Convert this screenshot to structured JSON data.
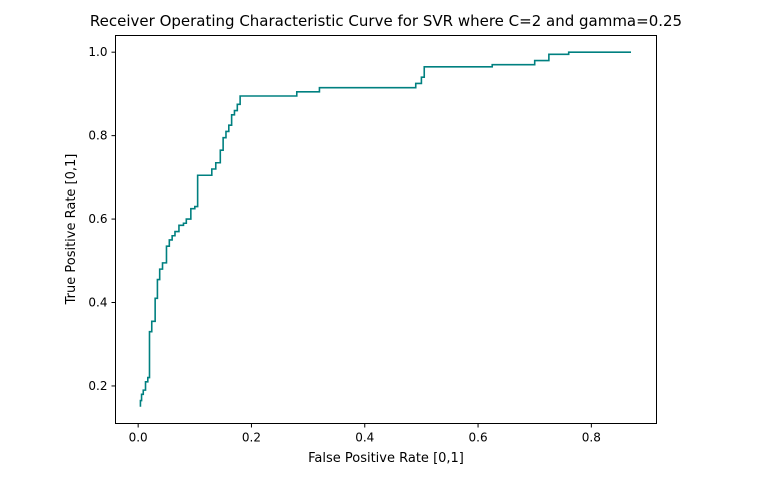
{
  "chart_data": {
    "type": "line",
    "title": "Receiver Operating Characteristic Curve for SVR where C=2 and gamma=0.25",
    "xlabel": "False Positive Rate [0,1]",
    "ylabel": "True Positive Rate [0,1]",
    "xlim": [
      -0.04,
      0.915
    ],
    "ylim": [
      0.11,
      1.04
    ],
    "xticks": [
      0.0,
      0.2,
      0.4,
      0.6,
      0.8
    ],
    "xtick_labels": [
      "0.0",
      "0.2",
      "0.4",
      "0.6",
      "0.8"
    ],
    "yticks": [
      0.2,
      0.4,
      0.6,
      0.8,
      1.0
    ],
    "ytick_labels": [
      "0.2",
      "0.4",
      "0.6",
      "0.8",
      "1.0"
    ],
    "grid": false,
    "series": [
      {
        "color": "#008080",
        "x": [
          0.004,
          0.004,
          0.006,
          0.006,
          0.009,
          0.009,
          0.013,
          0.013,
          0.017,
          0.017,
          0.02,
          0.02,
          0.024,
          0.024,
          0.03,
          0.03,
          0.034,
          0.034,
          0.038,
          0.038,
          0.043,
          0.043,
          0.05,
          0.05,
          0.055,
          0.055,
          0.06,
          0.06,
          0.065,
          0.065,
          0.072,
          0.072,
          0.08,
          0.08,
          0.085,
          0.085,
          0.093,
          0.093,
          0.1,
          0.1,
          0.105,
          0.105,
          0.13,
          0.13,
          0.137,
          0.137,
          0.145,
          0.145,
          0.15,
          0.15,
          0.155,
          0.155,
          0.16,
          0.16,
          0.165,
          0.165,
          0.17,
          0.17,
          0.175,
          0.175,
          0.18,
          0.18,
          0.185,
          0.185,
          0.28,
          0.28,
          0.32,
          0.32,
          0.33,
          0.33,
          0.49,
          0.49,
          0.5,
          0.5,
          0.505,
          0.505,
          0.62,
          0.62,
          0.625,
          0.625,
          0.7,
          0.7,
          0.72,
          0.72,
          0.725,
          0.725,
          0.755,
          0.755,
          0.76,
          0.76,
          0.87
        ],
        "y": [
          0.15,
          0.165,
          0.165,
          0.18,
          0.18,
          0.19,
          0.19,
          0.21,
          0.21,
          0.22,
          0.22,
          0.33,
          0.33,
          0.355,
          0.355,
          0.41,
          0.41,
          0.455,
          0.455,
          0.48,
          0.48,
          0.495,
          0.495,
          0.535,
          0.535,
          0.55,
          0.55,
          0.56,
          0.56,
          0.57,
          0.57,
          0.585,
          0.585,
          0.59,
          0.59,
          0.6,
          0.6,
          0.625,
          0.625,
          0.63,
          0.63,
          0.705,
          0.705,
          0.72,
          0.72,
          0.735,
          0.735,
          0.765,
          0.765,
          0.795,
          0.795,
          0.81,
          0.81,
          0.825,
          0.825,
          0.85,
          0.85,
          0.86,
          0.86,
          0.875,
          0.875,
          0.895,
          0.895,
          0.895,
          0.895,
          0.905,
          0.905,
          0.915,
          0.915,
          0.915,
          0.915,
          0.925,
          0.925,
          0.94,
          0.94,
          0.965,
          0.965,
          0.965,
          0.965,
          0.97,
          0.97,
          0.98,
          0.98,
          0.98,
          0.98,
          0.995,
          0.995,
          0.995,
          0.995,
          1.0,
          1.0
        ]
      }
    ]
  }
}
